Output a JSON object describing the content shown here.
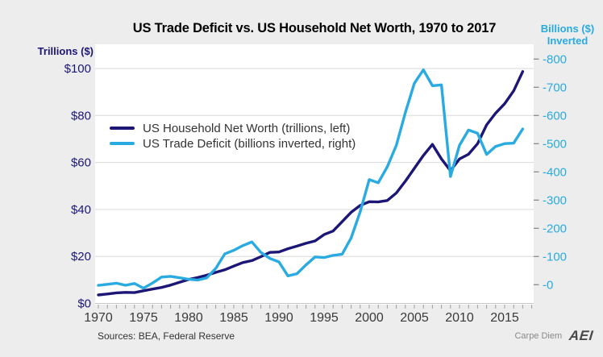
{
  "title": "US Trade Deficit vs. US Household Net Worth, 1970 to 2017",
  "left_axis": {
    "title": "Trillions ($)",
    "color": "#1c1677",
    "ticks": [
      {
        "label": "$100",
        "value": 100
      },
      {
        "label": "$80",
        "value": 80
      },
      {
        "label": "$60",
        "value": 60
      },
      {
        "label": "$40",
        "value": 40
      },
      {
        "label": "$20",
        "value": 20
      },
      {
        "label": "$0",
        "value": 0
      }
    ]
  },
  "right_axis": {
    "title_line1": "Billions ($)",
    "title_line2": "Inverted",
    "color": "#29abe2",
    "ticks": [
      {
        "label": "-800",
        "value": -800
      },
      {
        "label": "-700",
        "value": -700
      },
      {
        "label": "-600",
        "value": -600
      },
      {
        "label": "-500",
        "value": -500
      },
      {
        "label": "-400",
        "value": -400
      },
      {
        "label": "-300",
        "value": -300
      },
      {
        "label": "-200",
        "value": -200
      },
      {
        "label": "-100",
        "value": -100
      },
      {
        "label": "-0",
        "value": 0
      }
    ]
  },
  "x_axis": {
    "major": [
      {
        "label": "1970",
        "year": 1970
      },
      {
        "label": "1975",
        "year": 1975
      },
      {
        "label": "1980",
        "year": 1980
      },
      {
        "label": "1985",
        "year": 1985
      },
      {
        "label": "1990",
        "year": 1990
      },
      {
        "label": "1995",
        "year": 1995
      },
      {
        "label": "2000",
        "year": 2000
      },
      {
        "label": "2005",
        "year": 2005
      },
      {
        "label": "2010",
        "year": 2010
      },
      {
        "label": "2015",
        "year": 2015
      }
    ],
    "minor_from": 1970,
    "minor_to": 2018
  },
  "legend": {
    "items": [
      {
        "id": "household-net-worth",
        "label": "US Household Net Worth (trillions, left)",
        "color": "#1c1677"
      },
      {
        "id": "trade-deficit",
        "label": "US Trade Deficit (billions inverted, right)",
        "color": "#29abe2"
      }
    ]
  },
  "source_note": "Sources: BEA, Federal Reserve",
  "branding": {
    "text": "Carpe Diem",
    "logo_text": "AEI"
  },
  "chart_data": {
    "type": "line",
    "title": "US Trade Deficit vs. US Household Net Worth, 1970 to 2017",
    "grid": "horizontal",
    "legend_position": "inside-top-left",
    "left_axis_label": "Trillions ($)",
    "right_axis_label": "Billions ($) Inverted",
    "left_ylim": [
      0,
      100
    ],
    "right_ylim": [
      -800,
      0
    ],
    "right_axis_inverted": true,
    "years": [
      1970,
      1971,
      1972,
      1973,
      1974,
      1975,
      1976,
      1977,
      1978,
      1979,
      1980,
      1981,
      1982,
      1983,
      1984,
      1985,
      1986,
      1987,
      1988,
      1989,
      1990,
      1991,
      1992,
      1993,
      1994,
      1995,
      1996,
      1997,
      1998,
      1999,
      2000,
      2001,
      2002,
      2003,
      2004,
      2005,
      2006,
      2007,
      2008,
      2009,
      2010,
      2011,
      2012,
      2013,
      2014,
      2015,
      2016,
      2017
    ],
    "series": [
      {
        "id": "household-net-worth",
        "name": "US Household Net Worth",
        "unit": "trillions of dollars, left axis",
        "axis": "left",
        "color": "#1c1677",
        "values": [
          3.6,
          4.0,
          4.5,
          4.7,
          4.6,
          5.4,
          6.1,
          6.8,
          7.8,
          9.0,
          10.2,
          11.0,
          12.0,
          13.2,
          14.3,
          15.9,
          17.4,
          18.2,
          19.9,
          21.7,
          21.9,
          23.3,
          24.4,
          25.6,
          26.6,
          29.3,
          30.8,
          34.8,
          38.8,
          41.7,
          43.3,
          43.2,
          43.8,
          47.0,
          52.0,
          57.5,
          63.0,
          67.7,
          61.5,
          56.5,
          61.5,
          63.5,
          68.0,
          76.0,
          81.0,
          85.0,
          90.5,
          98.7
        ]
      },
      {
        "id": "trade-deficit",
        "name": "US Trade Deficit",
        "unit": "billions of dollars, inverted, right axis",
        "axis": "right",
        "color": "#29abe2",
        "values": [
          2.3,
          -1.3,
          -5.4,
          1.9,
          -4.3,
          12.4,
          -6.1,
          -27.2,
          -29.8,
          -24.6,
          -19.4,
          -16.2,
          -24.2,
          -57.8,
          -109.1,
          -121.9,
          -138.5,
          -151.7,
          -114.6,
          -93.1,
          -80.9,
          -31.1,
          -39.2,
          -70.3,
          -98.5,
          -96.4,
          -104.1,
          -108.3,
          -166.1,
          -258.6,
          -372.5,
          -361.5,
          -418.0,
          -493.9,
          -609.9,
          -714.2,
          -761.7,
          -705.4,
          -708.7,
          -383.8,
          -494.7,
          -548.6,
          -536.8,
          -461.9,
          -490.2,
          -500.4,
          -502.0,
          -552.3
        ]
      }
    ]
  }
}
